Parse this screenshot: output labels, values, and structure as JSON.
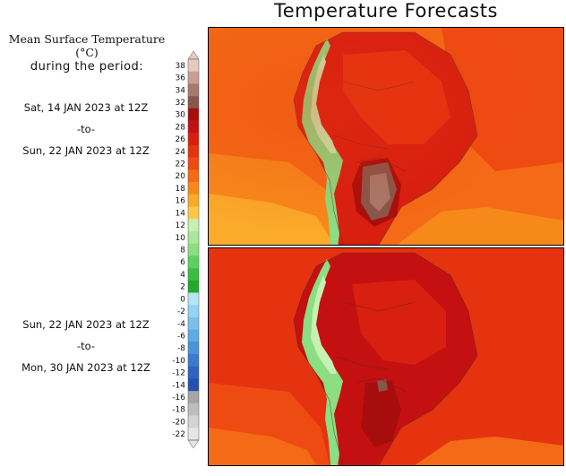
{
  "title": "Temperature Forecasts",
  "legend": {
    "line1": "Mean Surface Temperature (°C)",
    "line2": "during the period:",
    "ticks": [
      "38",
      "36",
      "34",
      "32",
      "30",
      "28",
      "26",
      "24",
      "22",
      "20",
      "18",
      "16",
      "14",
      "12",
      "10",
      "8",
      "6",
      "4",
      "2",
      "0",
      "-2",
      "-4",
      "-6",
      "-8",
      "-10",
      "-12",
      "-14",
      "-16",
      "-18",
      "-20",
      "-22"
    ],
    "colors": [
      "#e8c9c0",
      "#c9a093",
      "#a67a6c",
      "#86574b",
      "#a80d0d",
      "#c41010",
      "#d81f10",
      "#e5330f",
      "#ee4b12",
      "#f46a16",
      "#f7891b",
      "#fbaa2a",
      "#fdc84a",
      "#c7f0b3",
      "#a8e89a",
      "#8bde82",
      "#5fd060",
      "#3bbe3f",
      "#22a82b",
      "#b7e4f5",
      "#96d3f0",
      "#79c0ea",
      "#5eaae2",
      "#4b92d8",
      "#3b7acf",
      "#2d63c2",
      "#2550b0",
      "#a5a5a5",
      "#bdbdbd",
      "#d4d4d4",
      "#e6e6e6"
    ]
  },
  "periods": [
    {
      "start": "Sat, 14 JAN 2023 at 12Z",
      "sep": "-to-",
      "end": "Sun, 22 JAN 2023 at 12Z"
    },
    {
      "start": "Sun, 22 JAN 2023 at 12Z",
      "sep": "-to-",
      "end": "Mon, 30 JAN 2023 at 12Z"
    }
  ]
}
